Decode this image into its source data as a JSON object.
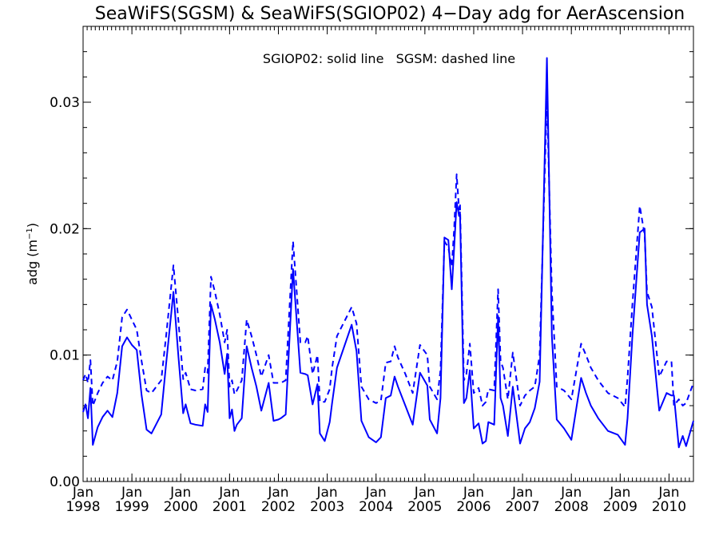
{
  "colors": {
    "series": "#0000ff",
    "axis": "#000000",
    "background": "#ffffff"
  },
  "chart_data": {
    "type": "line",
    "title": "SeaWiFS(SGSM) & SeaWiFS(SGIOP02) 4−Day adg for AerAscension",
    "ylabel": "adg (m",
    "ylabel_sup": "−1",
    "ylabel_close": ")",
    "annotation": "SGIOP02: solid line   SGSM: dashed line",
    "xlim": [
      1998.0,
      2010.5
    ],
    "ylim": [
      0.0,
      0.036
    ],
    "grid": false,
    "x_ticks": [
      {
        "value": 1998,
        "month": "Jan",
        "year": "1998"
      },
      {
        "value": 1999,
        "month": "Jan",
        "year": "1999"
      },
      {
        "value": 2000,
        "month": "Jan",
        "year": "2000"
      },
      {
        "value": 2001,
        "month": "Jan",
        "year": "2001"
      },
      {
        "value": 2002,
        "month": "Jan",
        "year": "2002"
      },
      {
        "value": 2003,
        "month": "Jan",
        "year": "2003"
      },
      {
        "value": 2004,
        "month": "Jan",
        "year": "2004"
      },
      {
        "value": 2005,
        "month": "Jan",
        "year": "2005"
      },
      {
        "value": 2006,
        "month": "Jan",
        "year": "2006"
      },
      {
        "value": 2007,
        "month": "Jan",
        "year": "2007"
      },
      {
        "value": 2008,
        "month": "Jan",
        "year": "2008"
      },
      {
        "value": 2009,
        "month": "Jan",
        "year": "2009"
      },
      {
        "value": 2010,
        "month": "Jan",
        "year": "2010"
      }
    ],
    "y_ticks": [
      {
        "value": 0.0,
        "label": "0.00"
      },
      {
        "value": 0.01,
        "label": "0.01"
      },
      {
        "value": 0.02,
        "label": "0.02"
      },
      {
        "value": 0.03,
        "label": "0.03"
      }
    ],
    "series": [
      {
        "name": "SGIOP02",
        "style": "solid",
        "x": [
          1998.0,
          1998.05,
          1998.1,
          1998.15,
          1998.2,
          1998.3,
          1998.4,
          1998.5,
          1998.6,
          1998.7,
          1998.8,
          1998.9,
          1999.0,
          1999.1,
          1999.2,
          1999.3,
          1999.4,
          1999.6,
          1999.7,
          1999.85,
          1999.95,
          2000.05,
          2000.1,
          2000.2,
          2000.3,
          2000.45,
          2000.5,
          2000.55,
          2000.62,
          2000.7,
          2000.8,
          2000.9,
          2000.95,
          2001.0,
          2001.05,
          2001.1,
          2001.15,
          2001.25,
          2001.35,
          2001.45,
          2001.55,
          2001.65,
          2001.8,
          2001.9,
          2002.0,
          2002.05,
          2002.15,
          2002.3,
          2002.45,
          2002.55,
          2002.6,
          2002.7,
          2002.8,
          2002.85,
          2002.95,
          2003.05,
          2003.1,
          2003.2,
          2003.5,
          2003.6,
          2003.7,
          2003.85,
          2004.0,
          2004.1,
          2004.2,
          2004.3,
          2004.38,
          2004.45,
          2004.6,
          2004.75,
          2004.9,
          2005.05,
          2005.1,
          2005.25,
          2005.32,
          2005.4,
          2005.48,
          2005.55,
          2005.6,
          2005.65,
          2005.7,
          2005.72,
          2005.8,
          2005.85,
          2005.92,
          2006.0,
          2006.1,
          2006.18,
          2006.25,
          2006.3,
          2006.42,
          2006.5,
          2006.55,
          2006.6,
          2006.7,
          2006.8,
          2006.95,
          2007.05,
          2007.15,
          2007.25,
          2007.35,
          2007.5,
          2007.6,
          2007.7,
          2007.85,
          2008.0,
          2008.2,
          2008.3,
          2008.4,
          2008.55,
          2008.75,
          2008.95,
          2009.1,
          2009.15,
          2009.25,
          2009.4,
          2009.5,
          2009.55,
          2009.65,
          2009.8,
          2009.95,
          2010.05,
          2010.1,
          2010.2,
          2010.28,
          2010.35,
          2010.5
        ],
        "y": [
          0.0055,
          0.0061,
          0.005,
          0.0074,
          0.0029,
          0.0043,
          0.0051,
          0.0056,
          0.0051,
          0.007,
          0.0107,
          0.0114,
          0.0108,
          0.0104,
          0.0068,
          0.0041,
          0.0038,
          0.0053,
          0.0093,
          0.015,
          0.01,
          0.0054,
          0.0061,
          0.0046,
          0.0045,
          0.0044,
          0.0061,
          0.0055,
          0.014,
          0.0128,
          0.011,
          0.0085,
          0.0101,
          0.005,
          0.0057,
          0.004,
          0.0045,
          0.005,
          0.0107,
          0.009,
          0.0075,
          0.0056,
          0.0078,
          0.0048,
          0.0049,
          0.005,
          0.0053,
          0.0168,
          0.0086,
          0.0085,
          0.0084,
          0.0061,
          0.0077,
          0.0038,
          0.0032,
          0.0047,
          0.0062,
          0.009,
          0.0124,
          0.0103,
          0.0048,
          0.0035,
          0.0031,
          0.0035,
          0.0066,
          0.0068,
          0.0083,
          0.0075,
          0.006,
          0.0045,
          0.0086,
          0.0076,
          0.0049,
          0.0038,
          0.0066,
          0.0193,
          0.0191,
          0.0152,
          0.0185,
          0.0221,
          0.021,
          0.0213,
          0.0062,
          0.0066,
          0.0088,
          0.0042,
          0.0046,
          0.003,
          0.0032,
          0.0047,
          0.0045,
          0.0131,
          0.0066,
          0.006,
          0.0036,
          0.0075,
          0.003,
          0.0042,
          0.0047,
          0.0058,
          0.0079,
          0.0335,
          0.0115,
          0.0049,
          0.0042,
          0.0033,
          0.0082,
          0.007,
          0.006,
          0.005,
          0.004,
          0.0037,
          0.0029,
          0.005,
          0.0115,
          0.0197,
          0.02,
          0.014,
          0.0115,
          0.0056,
          0.007,
          0.0068,
          0.0068,
          0.0027,
          0.0036,
          0.0028,
          0.0048
        ]
      },
      {
        "name": "SGSM",
        "style": "dashed",
        "x": [
          1998.0,
          1998.05,
          1998.1,
          1998.15,
          1998.2,
          1998.3,
          1998.4,
          1998.5,
          1998.6,
          1998.7,
          1998.8,
          1998.9,
          1999.0,
          1999.1,
          1999.2,
          1999.3,
          1999.4,
          1999.6,
          1999.7,
          1999.85,
          1999.95,
          2000.05,
          2000.1,
          2000.2,
          2000.3,
          2000.45,
          2000.5,
          2000.55,
          2000.62,
          2000.7,
          2000.8,
          2000.9,
          2000.95,
          2001.0,
          2001.05,
          2001.1,
          2001.15,
          2001.25,
          2001.35,
          2001.45,
          2001.55,
          2001.65,
          2001.8,
          2001.9,
          2002.0,
          2002.05,
          2002.15,
          2002.3,
          2002.45,
          2002.55,
          2002.6,
          2002.7,
          2002.8,
          2002.85,
          2002.95,
          2003.05,
          2003.1,
          2003.2,
          2003.5,
          2003.6,
          2003.7,
          2003.85,
          2004.0,
          2004.1,
          2004.2,
          2004.3,
          2004.38,
          2004.45,
          2004.6,
          2004.75,
          2004.9,
          2005.05,
          2005.1,
          2005.25,
          2005.32,
          2005.4,
          2005.48,
          2005.55,
          2005.6,
          2005.65,
          2005.7,
          2005.72,
          2005.8,
          2005.85,
          2005.92,
          2006.0,
          2006.1,
          2006.18,
          2006.25,
          2006.3,
          2006.42,
          2006.5,
          2006.55,
          2006.6,
          2006.7,
          2006.8,
          2006.95,
          2007.05,
          2007.15,
          2007.25,
          2007.35,
          2007.5,
          2007.6,
          2007.7,
          2007.85,
          2008.0,
          2008.2,
          2008.3,
          2008.4,
          2008.55,
          2008.75,
          2008.95,
          2009.1,
          2009.15,
          2009.25,
          2009.4,
          2009.5,
          2009.55,
          2009.65,
          2009.8,
          2009.95,
          2010.05,
          2010.1,
          2010.2,
          2010.28,
          2010.35,
          2010.5
        ],
        "y": [
          0.008,
          0.0085,
          0.0078,
          0.0096,
          0.006,
          0.007,
          0.0078,
          0.0083,
          0.008,
          0.0095,
          0.013,
          0.0136,
          0.0128,
          0.012,
          0.0095,
          0.0072,
          0.007,
          0.008,
          0.0115,
          0.0171,
          0.0128,
          0.0081,
          0.0086,
          0.0073,
          0.0072,
          0.0073,
          0.009,
          0.0086,
          0.0162,
          0.015,
          0.0132,
          0.011,
          0.012,
          0.0075,
          0.008,
          0.0069,
          0.0072,
          0.008,
          0.0128,
          0.0115,
          0.01,
          0.0083,
          0.01,
          0.0078,
          0.0078,
          0.0078,
          0.008,
          0.019,
          0.011,
          0.011,
          0.0115,
          0.0085,
          0.01,
          0.0063,
          0.0063,
          0.0073,
          0.009,
          0.0115,
          0.0138,
          0.0125,
          0.0075,
          0.0065,
          0.0062,
          0.0064,
          0.0094,
          0.0095,
          0.0107,
          0.0098,
          0.0085,
          0.007,
          0.0108,
          0.01,
          0.0075,
          0.0065,
          0.0088,
          0.019,
          0.0185,
          0.017,
          0.02,
          0.0243,
          0.0215,
          0.022,
          0.008,
          0.0085,
          0.0109,
          0.007,
          0.0074,
          0.006,
          0.0063,
          0.0073,
          0.0072,
          0.0152,
          0.0095,
          0.009,
          0.0065,
          0.0102,
          0.006,
          0.0068,
          0.0072,
          0.0075,
          0.01,
          0.0305,
          0.015,
          0.0075,
          0.0072,
          0.0065,
          0.0109,
          0.01,
          0.009,
          0.008,
          0.007,
          0.0066,
          0.0059,
          0.0082,
          0.014,
          0.0218,
          0.0195,
          0.015,
          0.0138,
          0.0083,
          0.0095,
          0.0095,
          0.006,
          0.0065,
          0.006,
          0.0062,
          0.0078
        ]
      }
    ]
  }
}
